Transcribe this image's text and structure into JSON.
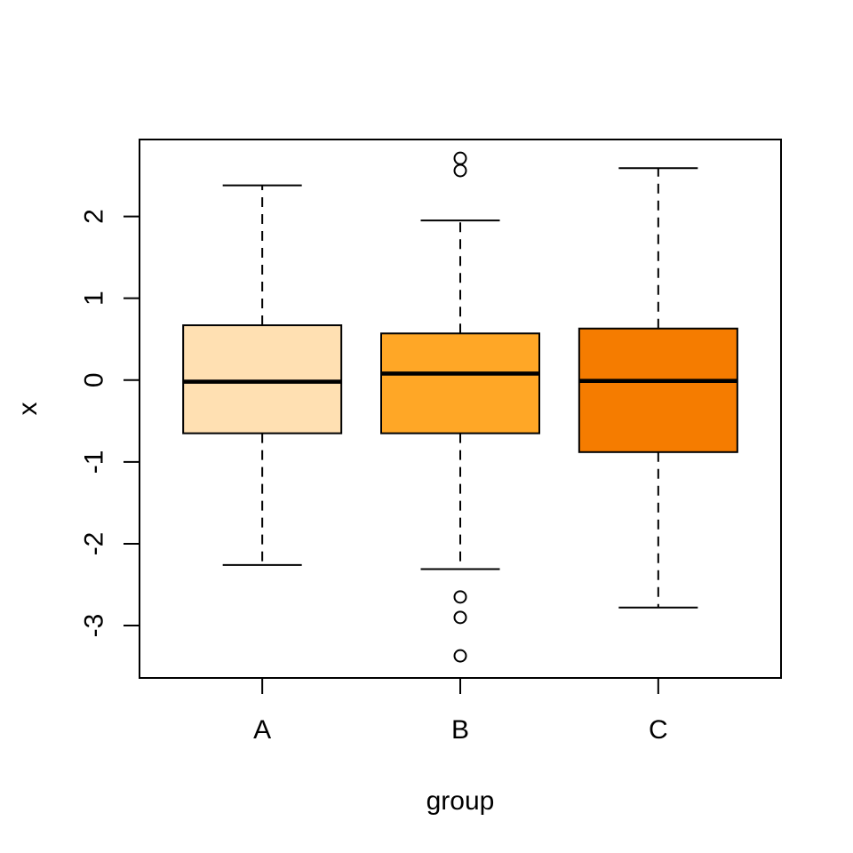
{
  "figure": {
    "kind": "R base-graphics boxplot",
    "background": "#FFFFFF",
    "frame_color": "#000000"
  },
  "chart_data": {
    "type": "boxplot",
    "title": "",
    "xlabel": "group",
    "ylabel": "x",
    "categories": [
      "A",
      "B",
      "C"
    ],
    "series": [
      {
        "name": "A",
        "whisker_low": -2.26,
        "q1": -0.65,
        "median": -0.02,
        "q3": 0.67,
        "whisker_high": 2.38,
        "outliers": [],
        "fill": "#FFE0B2"
      },
      {
        "name": "B",
        "whisker_low": -2.31,
        "q1": -0.65,
        "median": 0.08,
        "q3": 0.57,
        "whisker_high": 1.95,
        "outliers": [
          2.71,
          2.56,
          -2.65,
          -2.9,
          -3.37
        ],
        "fill": "#FFA726"
      },
      {
        "name": "C",
        "whisker_low": -2.78,
        "q1": -0.88,
        "median": -0.01,
        "q3": 0.63,
        "whisker_high": 2.59,
        "outliers": [],
        "fill": "#F57C00"
      }
    ],
    "y_axis": {
      "ticks": [
        2,
        1,
        0,
        -1,
        -2,
        -3
      ],
      "range": [
        -3.64,
        2.94
      ]
    },
    "x_axis": {
      "positions": [
        1,
        2,
        3
      ],
      "range": [
        0.38,
        3.62
      ]
    },
    "grid": false,
    "legend": false,
    "stroke_color": "#000000",
    "outlier_fill": "none"
  }
}
